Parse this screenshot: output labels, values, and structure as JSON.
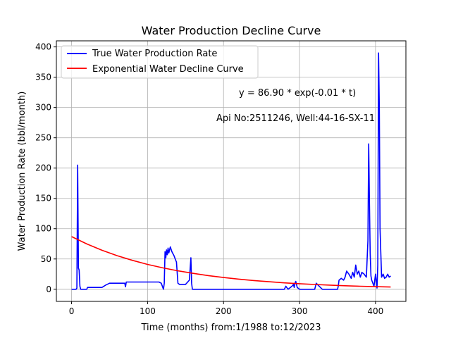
{
  "chart_data": {
    "type": "line",
    "title": "Water Production Decline Curve",
    "xlabel": "Time (months) from:1/1988 to:12/2023",
    "ylabel": "Water Production Rate (bbl/month)",
    "xlim": [
      -20,
      440
    ],
    "ylim": [
      -20,
      410
    ],
    "xticks": [
      0,
      100,
      200,
      300,
      400
    ],
    "yticks": [
      0,
      50,
      100,
      150,
      200,
      250,
      300,
      350,
      400
    ],
    "grid": true,
    "legend_position": "top-left",
    "annotations": [
      "y = 86.90 * exp(-0.01 * t)",
      "Api No:2511246, Well:44-16-SX-11"
    ],
    "series": [
      {
        "name": "True Water Production Rate",
        "color": "#0000ff",
        "x": [
          0,
          6,
          7,
          8,
          9,
          10,
          11,
          12,
          14,
          20,
          21,
          40,
          45,
          50,
          70,
          71,
          72,
          75,
          100,
          115,
          118,
          120,
          121,
          122,
          123,
          124,
          125,
          126,
          127,
          128,
          130,
          132,
          135,
          137,
          138,
          140,
          142,
          145,
          150,
          155,
          157,
          158,
          159,
          160,
          161,
          280,
          282,
          285,
          290,
          292,
          293,
          294,
          295,
          296,
          297,
          300,
          302,
          305,
          310,
          315,
          320,
          322,
          325,
          330,
          350,
          351,
          352,
          355,
          358,
          360,
          362,
          365,
          368,
          370,
          372,
          374,
          376,
          378,
          380,
          382,
          385,
          388,
          390,
          391,
          392,
          393,
          394,
          395,
          398,
          400,
          402,
          403,
          404,
          405,
          406,
          408,
          410,
          412,
          414,
          416,
          418,
          420
        ],
        "y": [
          0,
          0,
          2,
          205,
          35,
          32,
          5,
          0,
          0,
          0,
          3,
          3,
          7,
          10,
          10,
          4,
          12,
          12,
          12,
          12,
          10,
          3,
          0,
          10,
          62,
          52,
          65,
          57,
          68,
          60,
          70,
          62,
          55,
          48,
          45,
          10,
          8,
          8,
          8,
          15,
          52,
          10,
          0,
          0,
          0,
          0,
          5,
          0,
          5,
          8,
          3,
          10,
          13,
          8,
          3,
          0,
          0,
          0,
          0,
          0,
          0,
          10,
          6,
          0,
          0,
          5,
          15,
          18,
          15,
          20,
          30,
          25,
          18,
          28,
          20,
          40,
          25,
          30,
          20,
          28,
          25,
          20,
          80,
          240,
          150,
          60,
          22,
          15,
          5,
          25,
          2,
          40,
          390,
          300,
          100,
          20,
          25,
          18,
          20,
          25,
          20,
          22
        ]
      },
      {
        "name": "Exponential Water Decline Curve",
        "color": "#ff0000",
        "equation": {
          "a": 86.9,
          "b": 0.0075
        },
        "x": [
          0,
          20,
          40,
          60,
          80,
          100,
          120,
          140,
          160,
          180,
          200,
          220,
          240,
          260,
          280,
          300,
          320,
          340,
          360,
          380,
          400,
          420
        ],
        "y": [
          86.9,
          74.8,
          64.4,
          55.4,
          47.7,
          41.0,
          35.3,
          30.4,
          26.2,
          22.5,
          19.4,
          16.7,
          14.4,
          12.4,
          10.6,
          9.2,
          7.9,
          6.8,
          5.8,
          5.0,
          4.3,
          3.7
        ]
      }
    ]
  }
}
